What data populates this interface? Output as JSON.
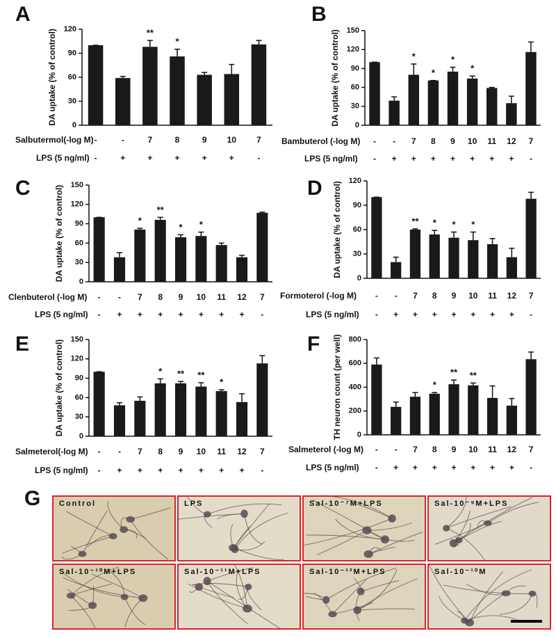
{
  "chart_data": [
    {
      "type": "bar",
      "panel": "A",
      "ylabel": "DA uptake (% of control)",
      "ylim": [
        0,
        120
      ],
      "yticks": [
        0,
        30,
        60,
        90,
        120
      ],
      "color": "#1a1a1a",
      "dose_label": "Salbutermol(-log M)",
      "doses": [
        "-",
        "-",
        "7",
        "8",
        "9",
        "10",
        "7"
      ],
      "lps_label": "LPS (5 ng/ml)",
      "lps": [
        "-",
        "+",
        "+",
        "+",
        "+",
        "+",
        "-"
      ],
      "values": [
        100,
        59,
        98,
        86,
        63,
        64,
        101
      ],
      "errors": [
        0,
        2,
        8,
        9,
        3,
        12,
        5
      ],
      "stars": [
        null,
        null,
        "**",
        "*",
        null,
        null,
        null
      ]
    },
    {
      "type": "bar",
      "panel": "B",
      "ylabel": "DA uptake (% of control)",
      "ylim": [
        0,
        150
      ],
      "yticks": [
        0,
        30,
        60,
        90,
        120,
        150
      ],
      "color": "#1a1a1a",
      "dose_label": "Bambuterol (-log M)",
      "doses": [
        "-",
        "-",
        "7",
        "8",
        "9",
        "10",
        "11",
        "12",
        "7"
      ],
      "lps_label": "LPS (5 ng/ml)",
      "lps": [
        "-",
        "+",
        "+",
        "+",
        "+",
        "+",
        "+",
        "+",
        "-"
      ],
      "values": [
        100,
        39,
        80,
        71,
        85,
        74,
        59,
        35,
        116
      ],
      "errors": [
        0,
        6,
        17,
        0,
        7,
        4,
        1,
        11,
        16
      ],
      "stars": [
        null,
        null,
        "*",
        "*",
        "*",
        "*",
        null,
        null,
        null
      ]
    },
    {
      "type": "bar",
      "panel": "C",
      "ylabel": "DA uptake (% of control)",
      "ylim": [
        0,
        150
      ],
      "yticks": [
        0,
        30,
        60,
        90,
        120,
        150
      ],
      "color": "#1a1a1a",
      "dose_label": "Clenbuterol (-log M)",
      "doses": [
        "-",
        "-",
        "7",
        "8",
        "9",
        "10",
        "11",
        "12",
        "7"
      ],
      "lps_label": "LPS (5 ng/ml)",
      "lps": [
        "-",
        "+",
        "+",
        "+",
        "+",
        "+",
        "+",
        "+",
        "-"
      ],
      "values": [
        100,
        38,
        81,
        96,
        69,
        71,
        57,
        38,
        107
      ],
      "errors": [
        0,
        7,
        2,
        4,
        4,
        6,
        3,
        3,
        1
      ],
      "stars": [
        null,
        null,
        "*",
        "**",
        "*",
        "*",
        null,
        null,
        null
      ]
    },
    {
      "type": "bar",
      "panel": "D",
      "ylabel": "DA uptake (% of control)",
      "ylim": [
        0,
        120
      ],
      "yticks": [
        0,
        30,
        60,
        90,
        120
      ],
      "color": "#1a1a1a",
      "dose_label": "Formoterol (-log M)",
      "doses": [
        "-",
        "-",
        "7",
        "8",
        "9",
        "10",
        "11",
        "12",
        "7"
      ],
      "lps_label": "LPS (5 ng/ml)",
      "lps": [
        "-",
        "+",
        "+",
        "+",
        "+",
        "+",
        "+",
        "+",
        "-"
      ],
      "values": [
        100,
        20,
        60,
        54,
        50,
        47,
        42,
        26,
        98
      ],
      "errors": [
        0,
        6,
        1,
        5,
        7,
        10,
        7,
        11,
        8
      ],
      "stars": [
        null,
        null,
        "**",
        "*",
        "*",
        "*",
        null,
        null,
        null
      ]
    },
    {
      "type": "bar",
      "panel": "E",
      "ylabel": "DA uptake (% of control)",
      "ylim": [
        0,
        150
      ],
      "yticks": [
        0,
        30,
        60,
        90,
        120,
        150
      ],
      "color": "#1a1a1a",
      "dose_label": "Salmeterol(-log M)",
      "doses": [
        "-",
        "-",
        "7",
        "8",
        "9",
        "10",
        "11",
        "12",
        "7"
      ],
      "lps_label": "LPS (5 ng/ml)",
      "lps": [
        "-",
        "+",
        "+",
        "+",
        "+",
        "+",
        "+",
        "+",
        "-"
      ],
      "values": [
        100,
        48,
        55,
        82,
        82,
        77,
        70,
        53,
        113
      ],
      "errors": [
        0,
        4,
        6,
        7,
        3,
        6,
        2,
        13,
        12
      ],
      "stars": [
        null,
        null,
        null,
        "*",
        "**",
        "**",
        "*",
        null,
        null
      ]
    },
    {
      "type": "bar",
      "panel": "F",
      "ylabel": "TH neuron count (per well)",
      "ylim": [
        0,
        800
      ],
      "yticks": [
        0,
        200,
        400,
        600,
        800
      ],
      "color": "#1a1a1a",
      "dose_label": "Salmeterol (-log M)",
      "doses": [
        "-",
        "-",
        "7",
        "8",
        "9",
        "10",
        "11",
        "12",
        "7"
      ],
      "lps_label": "LPS (5 ng/ml)",
      "lps": [
        "-",
        "+",
        "+",
        "+",
        "+",
        "+",
        "+",
        "+",
        "-"
      ],
      "values": [
        590,
        235,
        320,
        345,
        425,
        415,
        310,
        245,
        635
      ],
      "errors": [
        55,
        40,
        35,
        10,
        35,
        20,
        100,
        60,
        60
      ],
      "stars": [
        null,
        null,
        null,
        "*",
        "**",
        "**",
        null,
        null,
        null
      ]
    }
  ],
  "panel_g": {
    "panel": "G",
    "images": [
      "Control",
      "LPS",
      "Sal-10⁻⁷M+LPS",
      "Sal-10⁻⁹M+LPS",
      "Sal-10⁻¹⁰M+LPS",
      "Sal-10⁻¹¹M+LPS",
      "Sal-10⁻¹²M+LPS",
      "Sal-10⁻¹⁰M"
    ]
  }
}
